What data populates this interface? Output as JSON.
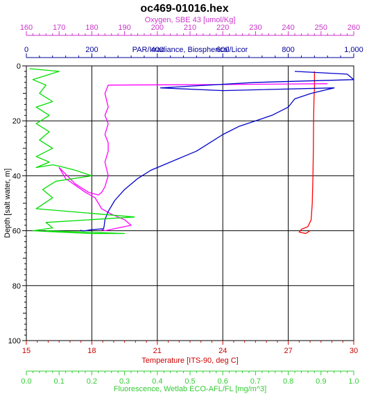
{
  "chart_data": {
    "type": "line",
    "title": "oc469-01016.hex",
    "y_axis": {
      "label": "Depth [salt water, m]",
      "range": [
        0,
        100
      ],
      "inverted": true,
      "ticks": [
        "0",
        "20",
        "40",
        "60",
        "80",
        "100"
      ],
      "tick_values": [
        0,
        20,
        40,
        60,
        80,
        100
      ],
      "color": "#000000"
    },
    "top_axes": [
      {
        "id": "oxygen",
        "label": "Oxygen, SBE 43 [umol/Kg]",
        "range": [
          160,
          260
        ],
        "ticks": [
          "160",
          "170",
          "180",
          "190",
          "200",
          "210",
          "220",
          "230",
          "240",
          "250",
          "260"
        ],
        "tick_values": [
          160,
          170,
          180,
          190,
          200,
          210,
          220,
          230,
          240,
          250,
          260
        ],
        "color": "#cc33cc"
      },
      {
        "id": "par",
        "label": "PAR/Irradiance, Biospherical/Licor",
        "range": [
          0,
          1000
        ],
        "ticks": [
          "0",
          "200",
          "400",
          "600",
          "800",
          "1,000"
        ],
        "tick_values": [
          0,
          200,
          400,
          600,
          800,
          1000
        ],
        "color": "#000099"
      }
    ],
    "bottom_axes": [
      {
        "id": "temperature",
        "label": "Temperature [ITS-90, deg C]",
        "range": [
          15,
          30
        ],
        "ticks": [
          "15",
          "18",
          "21",
          "24",
          "27",
          "30"
        ],
        "tick_values": [
          15,
          18,
          21,
          24,
          27,
          30
        ],
        "color": "#cc0000"
      },
      {
        "id": "fluorescence",
        "label": "Fluorescence, Wetlab ECO-AFL/FL [mg/m^3]",
        "range": [
          0,
          1
        ],
        "ticks": [
          "0.0",
          "0.1",
          "0.2",
          "0.3",
          "0.4",
          "0.5",
          "0.6",
          "0.7",
          "0.8",
          "0.9",
          "1.0"
        ],
        "tick_values": [
          0,
          0.1,
          0.2,
          0.3,
          0.4,
          0.5,
          0.6,
          0.7,
          0.8,
          0.9,
          1.0
        ],
        "color": "#33cc33"
      }
    ],
    "grid": true,
    "series": [
      {
        "axis": "temperature",
        "color": "#ff0000",
        "x": [
          28.2,
          28.2,
          28.2,
          28.18,
          28.16,
          28.15,
          28.13,
          28.1,
          28.05,
          27.9,
          27.6,
          27.5,
          27.8,
          28.0
        ],
        "y": [
          2,
          5,
          8,
          12,
          20,
          30,
          40,
          50,
          56,
          58.5,
          59.5,
          60.5,
          61,
          60
        ]
      },
      {
        "axis": "oxygen",
        "color": "#ff00ff",
        "x": [
          252,
          240,
          230,
          220,
          200,
          185,
          184,
          185,
          184,
          185,
          184,
          185,
          185,
          184,
          185,
          184,
          183,
          182,
          179,
          175,
          170,
          172,
          178,
          181,
          182,
          183,
          186,
          190,
          192,
          188,
          184,
          183
        ],
        "y": [
          6.5,
          6.6,
          6.7,
          6.8,
          6.9,
          7,
          10,
          15,
          18,
          21,
          25,
          28,
          31,
          35,
          40,
          44,
          46,
          47,
          46,
          43,
          37,
          41,
          46,
          48,
          50,
          52,
          54,
          56,
          58,
          59,
          60,
          59.5
        ]
      },
      {
        "axis": "par",
        "color": "#0000cc",
        "x": [
          820,
          980,
          1000,
          700,
          410,
          600,
          940,
          870,
          820,
          800,
          750,
          700,
          650,
          600,
          560,
          520,
          480,
          420,
          380,
          340,
          300,
          270,
          250,
          240,
          238,
          236,
          200,
          180,
          170,
          165
        ],
        "y": [
          2,
          3,
          5,
          6,
          8,
          9,
          8,
          10,
          12,
          15,
          18,
          20,
          22,
          25,
          28,
          31,
          33,
          36,
          38,
          41,
          45,
          49,
          53,
          56,
          58,
          59.3,
          59.6,
          60,
          60,
          59.8
        ]
      },
      {
        "axis": "fluorescence",
        "color": "#00dd00",
        "x": [
          0.01,
          0.1,
          0.02,
          0.06,
          0.04,
          0.08,
          0.03,
          0.07,
          0.03,
          0.07,
          0.04,
          0.08,
          0.03,
          0.07,
          0.03,
          0.08,
          0.1,
          0.15,
          0.2,
          0.09,
          0.05,
          0.08,
          0.03,
          0.33,
          0.06,
          0.08,
          0.02,
          0.1,
          0.2,
          0.3,
          0.06
        ],
        "y": [
          1,
          2,
          5,
          7,
          10,
          13,
          15,
          18,
          21,
          24,
          27,
          30,
          33,
          35,
          37,
          36,
          36.5,
          38,
          40,
          42,
          45,
          48,
          52,
          55,
          57,
          59,
          60,
          60.5,
          61,
          61,
          60
        ]
      }
    ]
  }
}
